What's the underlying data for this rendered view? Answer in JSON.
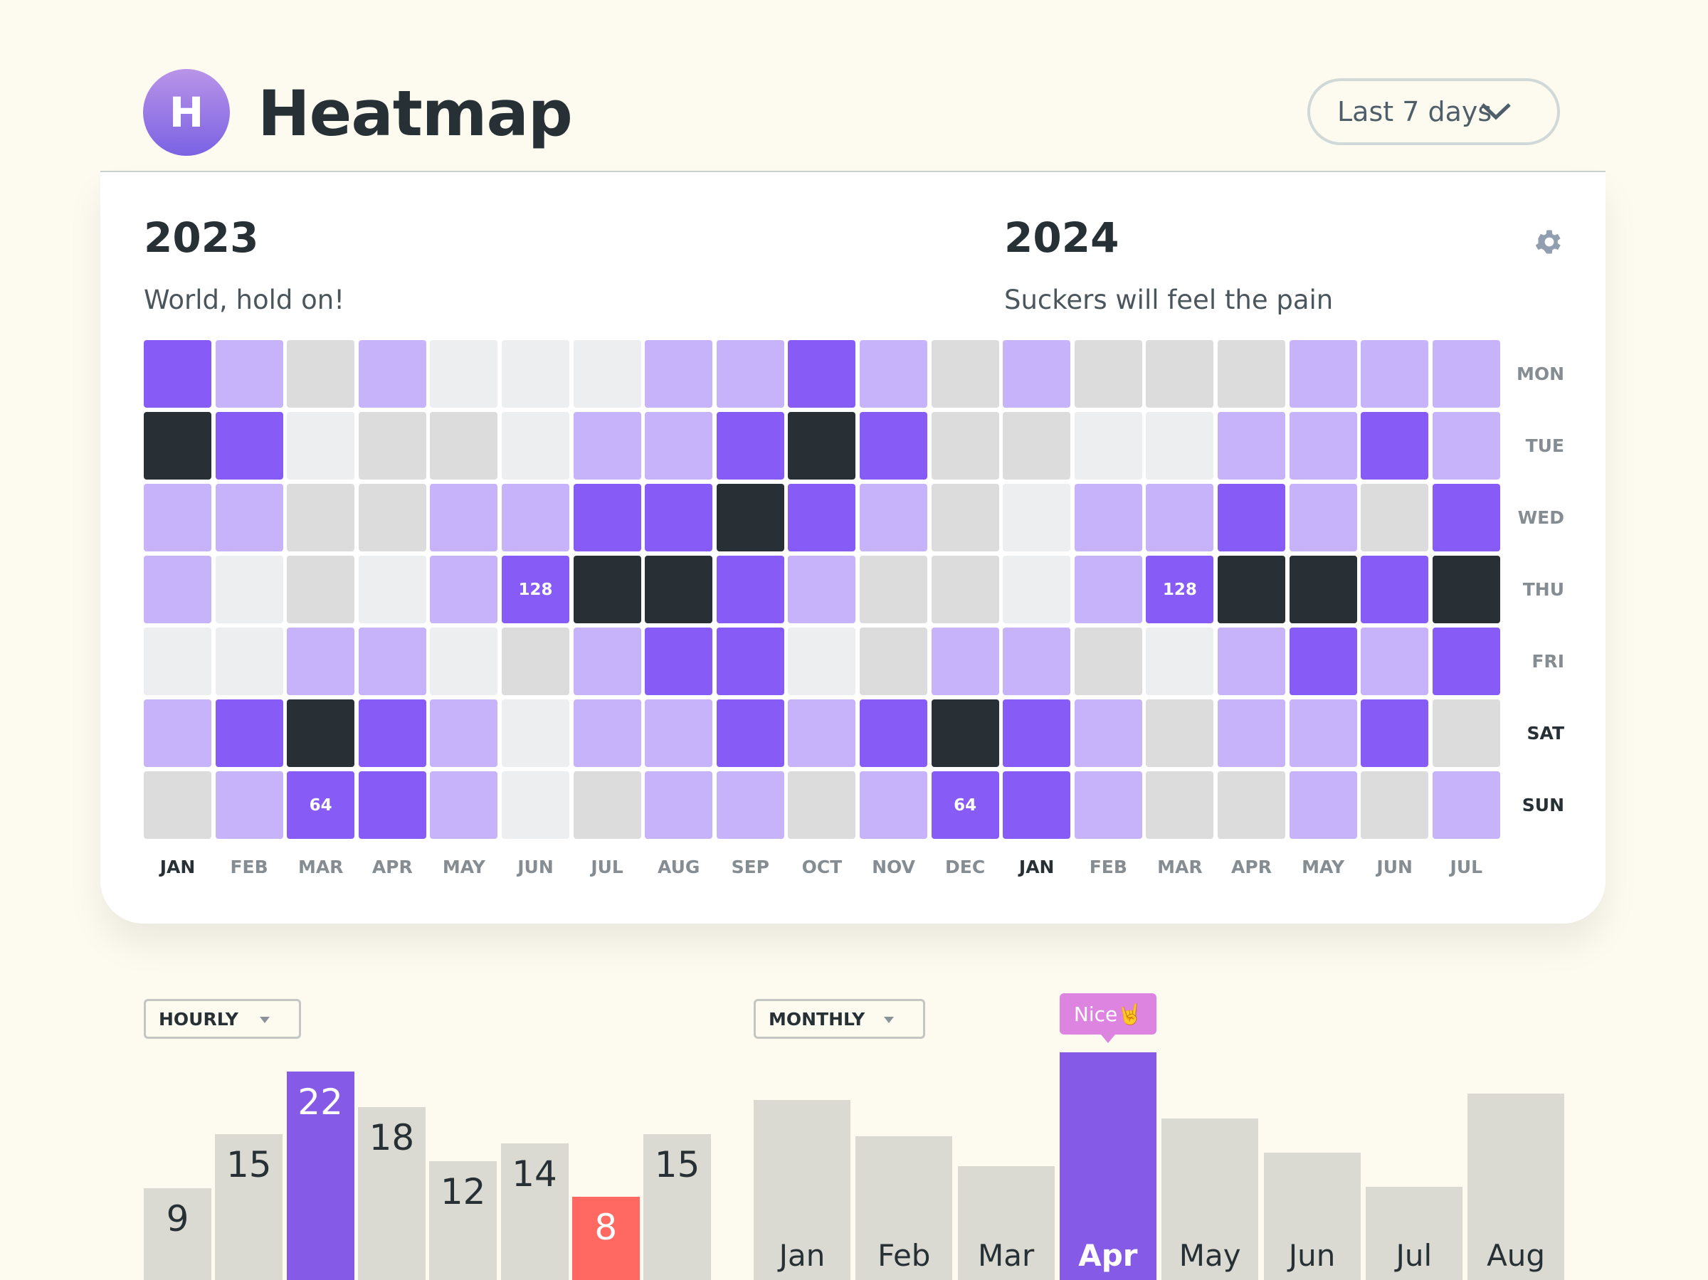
{
  "header": {
    "logo_letter": "H",
    "title": "Heatmap",
    "range_select": {
      "value": "Last 7 days",
      "icon": "chevron-down-icon"
    }
  },
  "card": {
    "settings_icon": "gear-icon",
    "years": [
      {
        "year": "2023",
        "subtitle": "World, hold on!"
      },
      {
        "year": "2024",
        "subtitle": "Suckers will feel the pain"
      }
    ]
  },
  "colors": {
    "levels": [
      "#eceef0",
      "#dcdcdd",
      "#c6b3fa",
      "#875cf6",
      "#283035"
    ],
    "bar_default": "#dbdad2",
    "bar_highlight": "#845ae6",
    "bar_low": "#ff6961",
    "tooltip": "#dd84e0",
    "background": "#fdfbf0"
  },
  "chart_data": [
    {
      "type": "heatmap",
      "columns": [
        "JAN",
        "FEB",
        "MAR",
        "APR",
        "MAY",
        "JUN",
        "JUL",
        "AUG",
        "SEP",
        "OCT",
        "NOV",
        "DEC",
        "JAN",
        "FEB",
        "MAR",
        "APR",
        "MAY",
        "JUN",
        "JUL"
      ],
      "highlight_columns": [
        0,
        12
      ],
      "rows": [
        "MON",
        "TUE",
        "WED",
        "THU",
        "FRI",
        "SAT",
        "SUN"
      ],
      "highlight_rows": [
        5,
        6
      ],
      "levels": [
        [
          3,
          2,
          1,
          2,
          0,
          0,
          0,
          2,
          2,
          3,
          2,
          1,
          2,
          1,
          1,
          1,
          2,
          2,
          2
        ],
        [
          4,
          3,
          0,
          1,
          1,
          0,
          2,
          2,
          3,
          4,
          3,
          1,
          1,
          0,
          0,
          2,
          2,
          3,
          2
        ],
        [
          2,
          2,
          1,
          1,
          2,
          2,
          3,
          3,
          4,
          3,
          2,
          1,
          0,
          2,
          2,
          3,
          2,
          1,
          3
        ],
        [
          2,
          0,
          1,
          0,
          2,
          3,
          4,
          4,
          3,
          2,
          1,
          1,
          0,
          2,
          3,
          4,
          4,
          3,
          4
        ],
        [
          0,
          0,
          2,
          2,
          0,
          1,
          2,
          3,
          3,
          0,
          1,
          2,
          2,
          1,
          0,
          2,
          3,
          2,
          3
        ],
        [
          2,
          3,
          4,
          3,
          2,
          0,
          2,
          2,
          3,
          2,
          3,
          4,
          3,
          2,
          1,
          2,
          2,
          3,
          1
        ],
        [
          1,
          2,
          3,
          3,
          2,
          0,
          1,
          2,
          2,
          1,
          2,
          3,
          3,
          2,
          1,
          1,
          2,
          1,
          2
        ]
      ],
      "cell_labels": [
        {
          "row": 3,
          "col": 5,
          "text": "128"
        },
        {
          "row": 3,
          "col": 14,
          "text": "128"
        },
        {
          "row": 6,
          "col": 2,
          "text": "64"
        },
        {
          "row": 6,
          "col": 11,
          "text": "64"
        }
      ]
    },
    {
      "type": "bar",
      "selector": "HOURLY",
      "values": [
        9,
        15,
        22,
        18,
        12,
        14,
        8,
        15
      ],
      "labels": [
        "9",
        "15",
        "22",
        "18",
        "12",
        "14",
        "8",
        "15"
      ],
      "highlight_index": 2,
      "low_index": 6
    },
    {
      "type": "bar",
      "selector": "MONTHLY",
      "categories": [
        "Jan",
        "Feb",
        "Mar",
        "Apr",
        "May",
        "Jun",
        "Jul",
        "Aug"
      ],
      "values": [
        79,
        63,
        50,
        100,
        71,
        56,
        41,
        82
      ],
      "highlight_index": 3,
      "tooltip": "Nice🤘"
    }
  ]
}
